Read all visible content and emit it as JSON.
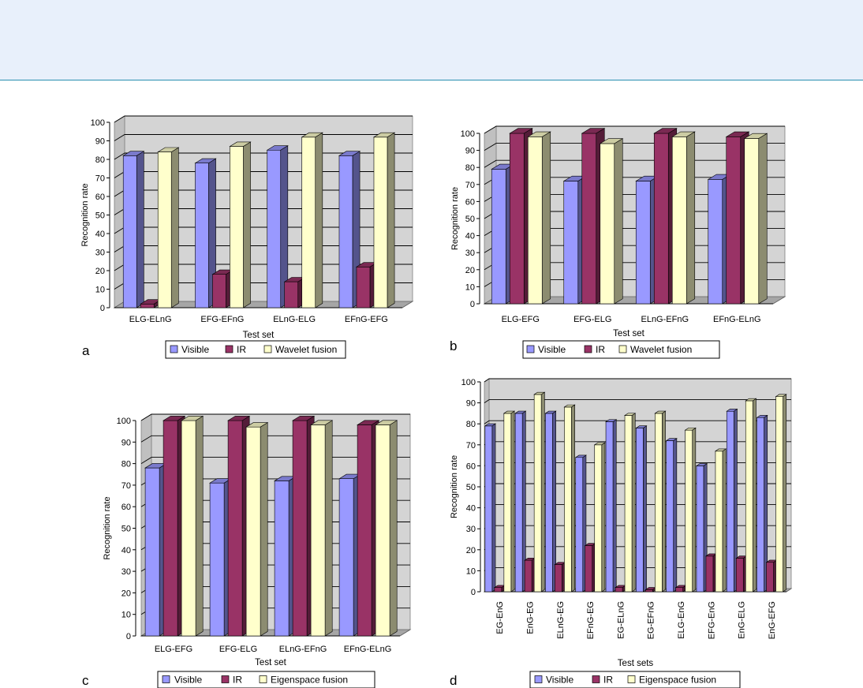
{
  "colors": {
    "visible": "#9999ff",
    "ir": "#993366",
    "fusion": "#ffffcc",
    "wall": "#d4d4d4",
    "floor": "#a6a6a6"
  },
  "chart_data": [
    {
      "panel_letter": "a",
      "type": "bar",
      "xlabel": "Test set",
      "ylabel": "Recognition rate",
      "ylim": [
        0,
        100
      ],
      "yticks": [
        0,
        10,
        20,
        30,
        40,
        50,
        60,
        70,
        80,
        90,
        100
      ],
      "categories": [
        "ELG-ELnG",
        "EFG-EFnG",
        "ELnG-ELG",
        "EFnG-EFG"
      ],
      "series": [
        {
          "name": "Visible",
          "values": [
            82,
            78,
            85,
            82
          ]
        },
        {
          "name": "IR",
          "values": [
            2,
            18,
            14,
            22
          ]
        },
        {
          "name": "Wavelet fusion",
          "values": [
            84,
            87,
            92,
            92
          ]
        }
      ],
      "grid": true,
      "legend": "bottom"
    },
    {
      "panel_letter": "b",
      "type": "bar",
      "xlabel": "Test set",
      "ylabel": "Recognition rate",
      "ylim": [
        0,
        100
      ],
      "yticks": [
        0,
        10,
        20,
        30,
        40,
        50,
        60,
        70,
        80,
        90,
        100
      ],
      "categories": [
        "ELG-EFG",
        "EFG-ELG",
        "ELnG-EFnG",
        "EFnG-ELnG"
      ],
      "series": [
        {
          "name": "Visible",
          "values": [
            79,
            72,
            72,
            73
          ]
        },
        {
          "name": "IR",
          "values": [
            100,
            100,
            100,
            98
          ]
        },
        {
          "name": "Wavelet fusion",
          "values": [
            98,
            94,
            98,
            97
          ]
        }
      ],
      "grid": true,
      "legend": "bottom"
    },
    {
      "panel_letter": "c",
      "type": "bar",
      "xlabel": "Test set",
      "ylabel": "Recognition rate",
      "ylim": [
        0,
        100
      ],
      "yticks": [
        0,
        10,
        20,
        30,
        40,
        50,
        60,
        70,
        80,
        90,
        100
      ],
      "categories": [
        "ELG-EFG",
        "EFG-ELG",
        "ELnG-EFnG",
        "EFnG-ELnG"
      ],
      "series": [
        {
          "name": "Visible",
          "values": [
            78,
            71,
            72,
            73
          ]
        },
        {
          "name": "IR",
          "values": [
            100,
            100,
            100,
            98
          ]
        },
        {
          "name": "Eigenspace fusion",
          "values": [
            100,
            97,
            98,
            98
          ]
        }
      ],
      "grid": true,
      "legend": "bottom"
    },
    {
      "panel_letter": "d",
      "type": "bar",
      "xlabel": "Test sets",
      "ylabel": "Recognition rate",
      "ylim": [
        0,
        100
      ],
      "yticks": [
        0,
        10,
        20,
        30,
        40,
        50,
        60,
        70,
        80,
        90,
        100
      ],
      "categories": [
        "EG-EnG",
        "EnG-EG",
        "ELnG-EG",
        "EFnG-EG",
        "EG-ELnG",
        "EG-EFnG",
        "ELG-EnG",
        "EFG-EnG",
        "EnG-ELG",
        "EnG-EFG"
      ],
      "series": [
        {
          "name": "Visible",
          "values": [
            79,
            85,
            85,
            64,
            81,
            78,
            72,
            60,
            86,
            83
          ]
        },
        {
          "name": "IR",
          "values": [
            2,
            15,
            13,
            22,
            2,
            1,
            2,
            17,
            16,
            14
          ]
        },
        {
          "name": "Eigenspace fusion",
          "values": [
            85,
            94,
            88,
            70,
            84,
            85,
            77,
            67,
            91,
            93
          ]
        }
      ],
      "grid": true,
      "legend": "bottom"
    }
  ]
}
